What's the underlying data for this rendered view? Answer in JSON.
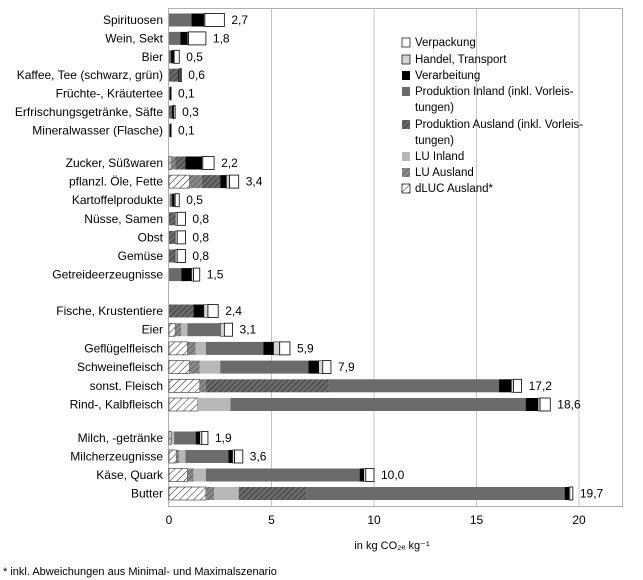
{
  "chart_data": {
    "type": "bar",
    "orientation": "horizontal",
    "stacked": true,
    "xlabel": "in kg CO₂ₑ kg⁻¹",
    "xlim": [
      0,
      22
    ],
    "xticks": [
      0,
      5,
      10,
      15,
      20
    ],
    "grid": true,
    "legend_position": "top-right",
    "footnote": "* inkl. Abweichungen aus Minimal- und Maximalszenario",
    "legend": [
      {
        "key": "verpackung",
        "label": "Verpackung"
      },
      {
        "key": "handel",
        "label": "Handel, Transport"
      },
      {
        "key": "verarbeitung",
        "label": "Verarbeitung"
      },
      {
        "key": "prod_inland",
        "label": "Produktion Inland (inkl. Vorleis-\ntungen)"
      },
      {
        "key": "prod_ausland",
        "label": "Produktion Ausland (inkl. Vorleis-\ntungen)"
      },
      {
        "key": "lu_inland",
        "label": "LU Inland"
      },
      {
        "key": "lu_ausland",
        "label": "LU Ausland"
      },
      {
        "key": "dluc",
        "label": "dLUC Ausland*"
      }
    ],
    "colors": {
      "verpackung": "#ffffff",
      "handel": "#d4d4d4",
      "verarbeitung": "#000000",
      "prod_inland": "#6b6b6b",
      "prod_ausland": "#585858",
      "lu_inland": "#b8b8b8",
      "lu_ausland": "#8a8a8a",
      "dluc": "#ffffff"
    },
    "groups": [
      {
        "items": [
          {
            "label": "Spirituosen",
            "total": "2,7",
            "segments": {
              "dluc": 0,
              "lu_ausland": 0,
              "lu_inland": 0,
              "prod_ausland": 0,
              "prod_inland": 1.1,
              "verarbeitung": 0.6,
              "handel": 0.05,
              "verpackung": 0.95
            }
          },
          {
            "label": "Wein, Sekt",
            "total": "1,8",
            "segments": {
              "dluc": 0,
              "lu_ausland": 0,
              "lu_inland": 0,
              "prod_ausland": 0,
              "prod_inland": 0.55,
              "verarbeitung": 0.35,
              "handel": 0.05,
              "verpackung": 0.85
            }
          },
          {
            "label": "Bier",
            "total": "0,5",
            "segments": {
              "dluc": 0,
              "lu_ausland": 0,
              "lu_inland": 0,
              "prod_ausland": 0,
              "prod_inland": 0.1,
              "verarbeitung": 0.12,
              "handel": 0.03,
              "verpackung": 0.25
            }
          },
          {
            "label": "Kaffee, Tee (schwarz, grün)",
            "total": "0,6",
            "segments": {
              "dluc": 0,
              "lu_ausland": 0,
              "lu_inland": 0,
              "prod_ausland": 0.45,
              "prod_inland": 0,
              "verarbeitung": 0.05,
              "handel": 0.05,
              "verpackung": 0.05
            }
          },
          {
            "label": "Früchte-, Kräutertee",
            "total": "0,1",
            "segments": {
              "dluc": 0,
              "lu_ausland": 0,
              "lu_inland": 0,
              "prod_ausland": 0.05,
              "prod_inland": 0,
              "verarbeitung": 0.03,
              "handel": 0.01,
              "verpackung": 0.01
            }
          },
          {
            "label": "Erfrischungsgetränke, Säfte",
            "total": "0,3",
            "segments": {
              "dluc": 0,
              "lu_ausland": 0,
              "lu_inland": 0,
              "prod_ausland": 0.15,
              "prod_inland": 0,
              "verarbeitung": 0.05,
              "handel": 0.03,
              "verpackung": 0.07
            }
          },
          {
            "label": "Mineralwasser (Flasche)",
            "total": "0,1",
            "segments": {
              "dluc": 0,
              "lu_ausland": 0,
              "lu_inland": 0,
              "prod_ausland": 0,
              "prod_inland": 0.04,
              "verarbeitung": 0.04,
              "handel": 0.01,
              "verpackung": 0.01
            }
          }
        ]
      },
      {
        "items": [
          {
            "label": "Zucker, Süßwaren",
            "total": "2,2",
            "segments": {
              "dluc": 0.1,
              "lu_ausland": 0.2,
              "lu_inland": 0,
              "prod_ausland": 0.5,
              "prod_inland": 0,
              "verarbeitung": 0.8,
              "handel": 0.05,
              "verpackung": 0.55
            }
          },
          {
            "label": "pflanzl. Öle, Fette",
            "total": "3,4",
            "segments": {
              "dluc": 1.0,
              "lu_ausland": 0.6,
              "lu_inland": 0,
              "prod_ausland": 0.9,
              "prod_inland": 0,
              "verarbeitung": 0.3,
              "handel": 0.15,
              "verpackung": 0.45
            }
          },
          {
            "label": "Kartoffelprodukte",
            "total": "0,5",
            "segments": {
              "dluc": 0,
              "lu_ausland": 0,
              "lu_inland": 0.05,
              "prod_ausland": 0,
              "prod_inland": 0.1,
              "verarbeitung": 0.1,
              "handel": 0.05,
              "verpackung": 0.2
            }
          },
          {
            "label": "Nüsse, Samen",
            "total": "0,8",
            "segments": {
              "dluc": 0,
              "lu_ausland": 0,
              "lu_inland": 0,
              "prod_ausland": 0.3,
              "prod_inland": 0,
              "verarbeitung": 0,
              "handel": 0.1,
              "verpackung": 0.4
            }
          },
          {
            "label": "Obst",
            "total": "0,8",
            "segments": {
              "dluc": 0,
              "lu_ausland": 0,
              "lu_inland": 0,
              "prod_ausland": 0.3,
              "prod_inland": 0,
              "verarbeitung": 0,
              "handel": 0.1,
              "verpackung": 0.4
            }
          },
          {
            "label": "Gemüse",
            "total": "0,8",
            "segments": {
              "dluc": 0,
              "lu_ausland": 0,
              "lu_inland": 0,
              "prod_ausland": 0.3,
              "prod_inland": 0,
              "verarbeitung": 0,
              "handel": 0.1,
              "verpackung": 0.4
            }
          },
          {
            "label": "Getreideerzeugnisse",
            "total": "1,5",
            "segments": {
              "dluc": 0,
              "lu_ausland": 0,
              "lu_inland": 0,
              "prod_ausland": 0,
              "prod_inland": 0.6,
              "verarbeitung": 0.5,
              "handel": 0.1,
              "verpackung": 0.3
            }
          }
        ]
      },
      {
        "items": [
          {
            "label": "Fische, Krustentiere",
            "total": "2,4",
            "segments": {
              "dluc": 0,
              "lu_ausland": 0,
              "lu_inland": 0,
              "prod_ausland": 1.2,
              "prod_inland": 0,
              "verarbeitung": 0.5,
              "handel": 0.2,
              "verpackung": 0.5
            }
          },
          {
            "label": "Eier",
            "total": "3,1",
            "segments": {
              "dluc": 0.3,
              "lu_ausland": 0.3,
              "lu_inland": 0.3,
              "prod_ausland": 0,
              "prod_inland": 1.6,
              "verarbeitung": 0,
              "handel": 0.2,
              "verpackung": 0.4
            }
          },
          {
            "label": "Geflügelfleisch",
            "total": "5,9",
            "segments": {
              "dluc": 0.9,
              "lu_ausland": 0.4,
              "lu_inland": 0.5,
              "prod_ausland": 0,
              "prod_inland": 2.8,
              "verarbeitung": 0.5,
              "handel": 0.3,
              "verpackung": 0.5
            }
          },
          {
            "label": "Schweinefleisch",
            "total": "7,9",
            "segments": {
              "dluc": 1.0,
              "lu_ausland": 0.5,
              "lu_inland": 1.0,
              "prod_ausland": 0,
              "prod_inland": 4.3,
              "verarbeitung": 0.5,
              "handel": 0.2,
              "verpackung": 0.4
            }
          },
          {
            "label": "sonst. Fleisch",
            "total": "17,2",
            "segments": {
              "dluc": 1.5,
              "lu_ausland": 0.3,
              "lu_inland": 0,
              "prod_ausland": 6.0,
              "prod_inland": 8.3,
              "verarbeitung": 0.6,
              "handel": 0.1,
              "verpackung": 0.4
            }
          },
          {
            "label": "Rind-, Kalbfleisch",
            "total": "18,6",
            "segments": {
              "dluc": 1.4,
              "lu_ausland": 0,
              "lu_inland": 1.6,
              "prod_ausland": 0,
              "prod_inland": 14.4,
              "verarbeitung": 0.6,
              "handel": 0.1,
              "verpackung": 0.5
            }
          }
        ]
      },
      {
        "items": [
          {
            "label": "Milch, -getränke",
            "total": "1,9",
            "segments": {
              "dluc": 0.1,
              "lu_ausland": 0.05,
              "lu_inland": 0.1,
              "prod_ausland": 0,
              "prod_inland": 1.05,
              "verarbeitung": 0.2,
              "handel": 0.1,
              "verpackung": 0.3
            }
          },
          {
            "label": "Milcherzeugnisse",
            "total": "3,6",
            "segments": {
              "dluc": 0.35,
              "lu_ausland": 0.15,
              "lu_inland": 0.3,
              "prod_ausland": 0,
              "prod_inland": 2.1,
              "verarbeitung": 0.2,
              "handel": 0.1,
              "verpackung": 0.4
            }
          },
          {
            "label": "Käse, Quark",
            "total": "10,0",
            "segments": {
              "dluc": 0.9,
              "lu_ausland": 0.3,
              "lu_inland": 0.6,
              "prod_ausland": 0,
              "prod_inland": 7.5,
              "verarbeitung": 0.2,
              "handel": 0.1,
              "verpackung": 0.4
            }
          },
          {
            "label": "Butter",
            "total": "19,7",
            "segments": {
              "dluc": 1.8,
              "lu_ausland": 0.4,
              "lu_inland": 1.2,
              "prod_ausland": 3.3,
              "prod_inland": 12.6,
              "verarbeitung": 0.2,
              "handel": 0.05,
              "verpackung": 0.15
            }
          }
        ]
      }
    ]
  }
}
